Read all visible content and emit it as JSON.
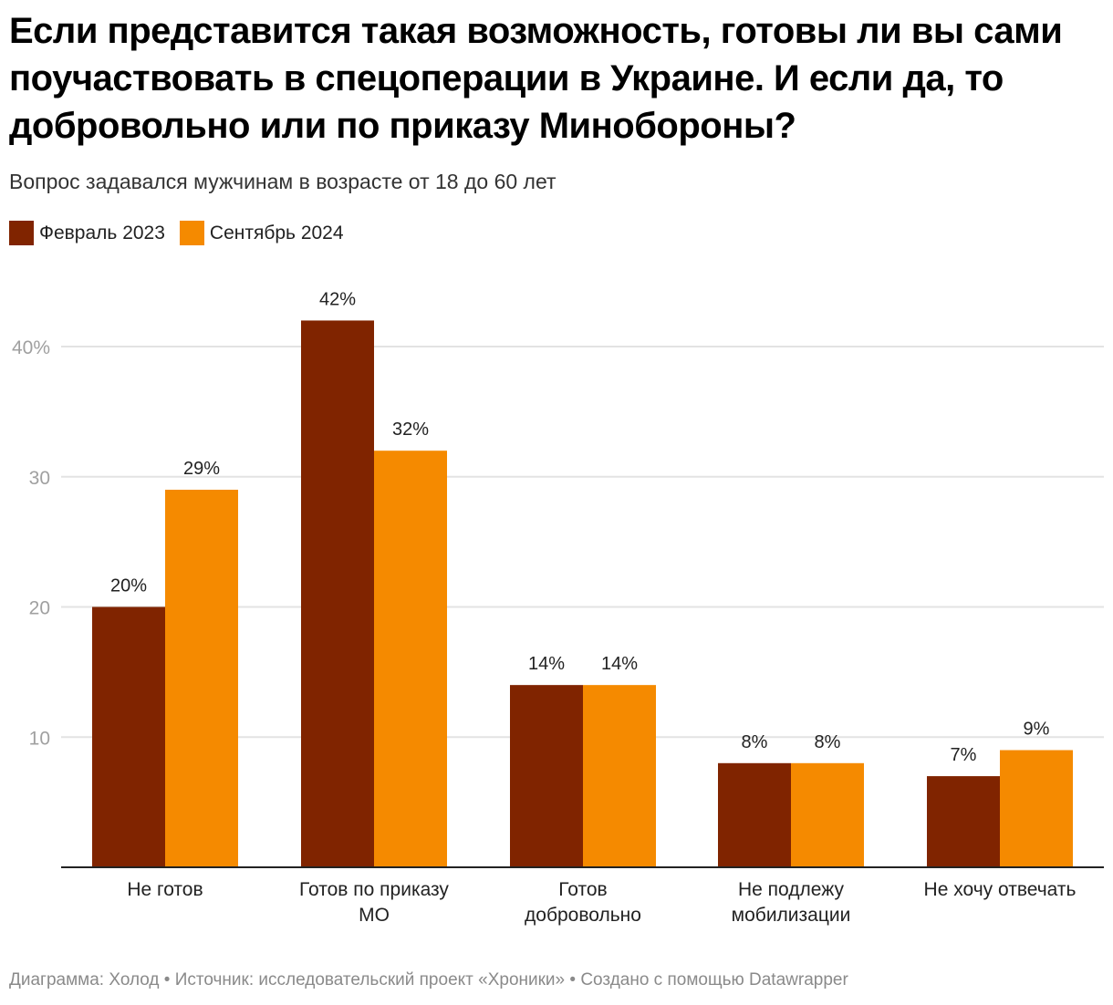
{
  "title": "Если представится такая возможность, готовы ли вы сами поучаствовать в спецоперации в Украине. И если да, то добровольно или по приказу Минобороны?",
  "subtitle": "Вопрос задавался мужчинам в возрасте от 18 до 60 лет",
  "footer": "Диаграмма: Холод • Источник: исследовательский проект «Хроники» • Создано с помощью Datawrapper",
  "chart_data": {
    "type": "bar",
    "title": "Если представится такая возможность, готовы ли вы сами поучаствовать в спецоперации в Украине. И если да, то добровольно или по приказу Минобороны?",
    "subtitle": "Вопрос задавался мужчинам в возрасте от 18 до 60 лет",
    "xlabel": "",
    "ylabel": "",
    "ylim": [
      0,
      45
    ],
    "yticks": [
      10,
      20,
      30,
      40
    ],
    "ytick_labels": [
      "10",
      "20",
      "30",
      "40%"
    ],
    "grid": true,
    "legend_position": "top-left",
    "categories": [
      "Не готов",
      "Готов по приказу МО",
      "Готов добровольно",
      "Не подлежу мобилизации",
      "Не хочу отвечать"
    ],
    "category_lines": [
      [
        "Не готов"
      ],
      [
        "Готов по приказу",
        "МО"
      ],
      [
        "Готов",
        "добровольно"
      ],
      [
        "Не подлежу",
        "мобилизации"
      ],
      [
        "Не хочу отвечать"
      ]
    ],
    "series": [
      {
        "name": "Февраль 2023",
        "color": "#802400",
        "values": [
          20,
          42,
          14,
          8,
          7
        ],
        "labels": [
          "20%",
          "42%",
          "14%",
          "8%",
          "7%"
        ]
      },
      {
        "name": "Сентябрь 2024",
        "color": "#f58a00",
        "values": [
          29,
          32,
          14,
          8,
          9
        ],
        "labels": [
          "29%",
          "32%",
          "14%",
          "8%",
          "9%"
        ]
      }
    ]
  }
}
